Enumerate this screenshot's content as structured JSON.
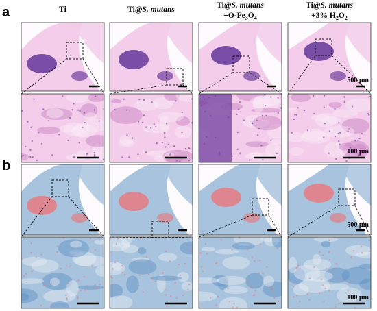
{
  "panel_labels": [
    "a",
    "b"
  ],
  "columns": [
    {
      "lines": [
        [
          {
            "text": "Ti"
          }
        ]
      ]
    },
    {
      "lines": [
        [
          {
            "text": "Ti@"
          },
          {
            "text": "S. mutans",
            "italic": true
          }
        ]
      ]
    },
    {
      "lines": [
        [
          {
            "text": "Ti@"
          },
          {
            "text": "S. mutans",
            "italic": true
          }
        ],
        [
          {
            "text": "+O-Fe"
          },
          {
            "text": "3",
            "sub": true
          },
          {
            "text": "O"
          },
          {
            "text": "4",
            "sub": true
          }
        ]
      ]
    },
    {
      "lines": [
        [
          {
            "text": "Ti@"
          },
          {
            "text": "S. mutans",
            "italic": true
          }
        ],
        [
          {
            "text": "+3% H"
          },
          {
            "text": "2",
            "sub": true
          },
          {
            "text": "O"
          },
          {
            "text": "2",
            "sub": true
          }
        ]
      ]
    }
  ],
  "scale_labels": {
    "a_overview": "500 µm",
    "a_zoom": "100 µm",
    "b_overview": "500 µm",
    "b_zoom": "100 µm"
  }
}
